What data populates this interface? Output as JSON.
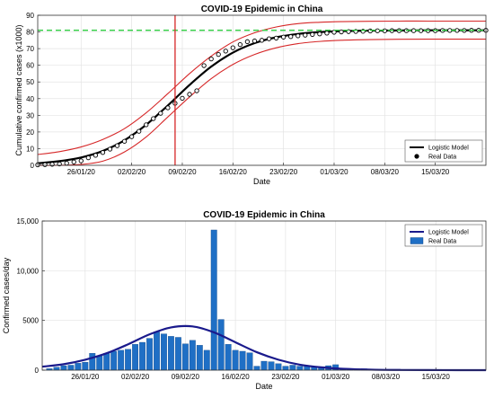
{
  "chart_data": [
    {
      "type": "line",
      "title": "COVID-19 Epidemic in China",
      "xlabel": "Date",
      "ylabel": "Cumulative confirmed cases (x1000)",
      "x_date_start": "2020-01-20",
      "x_date_end": "2020-03-22",
      "xticks": [
        "26/01/20",
        "02/02/20",
        "09/02/20",
        "16/02/20",
        "23/02/20",
        "01/03/20",
        "08/03/20",
        "15/03/20"
      ],
      "ylim": [
        0,
        90
      ],
      "yticks": [
        "0",
        "10",
        "20",
        "30",
        "40",
        "50",
        "60",
        "70",
        "80",
        "90"
      ],
      "grid": true,
      "legend": "bottom-right",
      "legend_entries": [
        "Logistic Model",
        "Real Data"
      ],
      "series": [
        {
          "name": "Logistic Model",
          "style": "line",
          "color": "#000000",
          "x": [
            "2020-01-20",
            "2020-01-23",
            "2020-01-26",
            "2020-01-29",
            "2020-02-01",
            "2020-02-04",
            "2020-02-07",
            "2020-02-10",
            "2020-02-13",
            "2020-02-16",
            "2020-02-19",
            "2020-02-22",
            "2020-02-25",
            "2020-02-28",
            "2020-03-02",
            "2020-03-06",
            "2020-03-10",
            "2020-03-14",
            "2020-03-18",
            "2020-03-22"
          ],
          "y": [
            1.2,
            2.5,
            4.7,
            8.6,
            15.0,
            24.3,
            35.9,
            48.2,
            59.2,
            67.6,
            73.3,
            76.8,
            78.8,
            79.9,
            80.5,
            80.8,
            80.9,
            81.0,
            81.0,
            81.0
          ]
        },
        {
          "name": "upper bound",
          "style": "line",
          "color": "#d62728",
          "x": [
            "2020-01-20",
            "2020-01-23",
            "2020-01-26",
            "2020-01-29",
            "2020-02-01",
            "2020-02-04",
            "2020-02-07",
            "2020-02-10",
            "2020-02-13",
            "2020-02-16",
            "2020-02-19",
            "2020-02-22",
            "2020-02-25",
            "2020-02-28",
            "2020-03-02",
            "2020-03-06",
            "2020-03-10",
            "2020-03-14",
            "2020-03-18",
            "2020-03-22"
          ],
          "y": [
            6.5,
            8.2,
            11.0,
            15.5,
            22.0,
            31.5,
            43.0,
            55.0,
            65.5,
            74.0,
            79.5,
            83.0,
            85.0,
            85.8,
            86.2,
            86.4,
            86.5,
            86.5,
            86.5,
            86.5
          ]
        },
        {
          "name": "lower bound",
          "style": "line",
          "color": "#d62728",
          "x": [
            "2020-01-20",
            "2020-01-23",
            "2020-01-26",
            "2020-01-29",
            "2020-02-01",
            "2020-02-04",
            "2020-02-07",
            "2020-02-10",
            "2020-02-13",
            "2020-02-16",
            "2020-02-19",
            "2020-02-22",
            "2020-02-25",
            "2020-02-28",
            "2020-03-02",
            "2020-03-06",
            "2020-03-10",
            "2020-03-14",
            "2020-03-18",
            "2020-03-22"
          ],
          "y": [
            0.0,
            0.0,
            0.5,
            2.5,
            8.0,
            17.0,
            29.0,
            41.0,
            52.0,
            60.5,
            66.5,
            70.5,
            73.0,
            74.3,
            75.0,
            75.4,
            75.6,
            75.7,
            75.7,
            75.7
          ]
        },
        {
          "name": "Real Data",
          "style": "markers",
          "color": "#000000",
          "x": [
            "2020-01-20",
            "2020-01-21",
            "2020-01-22",
            "2020-01-23",
            "2020-01-24",
            "2020-01-25",
            "2020-01-26",
            "2020-01-27",
            "2020-01-28",
            "2020-01-29",
            "2020-01-30",
            "2020-01-31",
            "2020-02-01",
            "2020-02-02",
            "2020-02-03",
            "2020-02-04",
            "2020-02-05",
            "2020-02-06",
            "2020-02-07",
            "2020-02-08",
            "2020-02-09",
            "2020-02-10",
            "2020-02-11",
            "2020-02-12",
            "2020-02-13",
            "2020-02-14",
            "2020-02-15",
            "2020-02-16",
            "2020-02-17",
            "2020-02-18",
            "2020-02-19",
            "2020-02-20",
            "2020-02-21",
            "2020-02-22",
            "2020-02-23",
            "2020-02-24",
            "2020-02-25",
            "2020-02-26",
            "2020-02-27",
            "2020-02-28",
            "2020-02-29",
            "2020-03-01",
            "2020-03-02",
            "2020-03-03",
            "2020-03-04",
            "2020-03-05",
            "2020-03-06",
            "2020-03-07",
            "2020-03-08",
            "2020-03-09",
            "2020-03-10",
            "2020-03-11",
            "2020-03-12",
            "2020-03-13",
            "2020-03-14",
            "2020-03-15",
            "2020-03-16",
            "2020-03-17",
            "2020-03-18",
            "2020-03-19",
            "2020-03-20",
            "2020-03-21",
            "2020-03-22"
          ],
          "y": [
            0.3,
            0.4,
            0.6,
            0.8,
            1.3,
            2.0,
            2.7,
            4.5,
            6.0,
            7.7,
            9.7,
            11.8,
            14.4,
            17.2,
            20.4,
            24.3,
            28.0,
            31.2,
            34.5,
            37.2,
            40.2,
            42.6,
            44.7,
            59.8,
            63.8,
            66.5,
            68.5,
            70.5,
            72.4,
            74.2,
            74.6,
            75.0,
            75.9,
            76.3,
            76.9,
            77.2,
            77.7,
            78.1,
            78.5,
            78.8,
            79.3,
            79.8,
            80.0,
            80.2,
            80.3,
            80.4,
            80.6,
            80.7,
            80.7,
            80.8,
            80.8,
            80.8,
            80.8,
            80.8,
            80.8,
            80.8,
            80.9,
            80.9,
            80.9,
            80.9,
            81.0,
            81.0,
            81.0
          ]
        },
        {
          "name": "plateau reference",
          "style": "dashed",
          "color": "#2ecc40",
          "x": [
            "2020-01-20",
            "2020-03-22"
          ],
          "y": [
            81,
            81
          ]
        },
        {
          "name": "inflection date",
          "style": "vertical",
          "color": "#d62728",
          "x": [
            "2020-02-08",
            "2020-02-08"
          ],
          "y": [
            0,
            90
          ]
        }
      ]
    },
    {
      "type": "bar",
      "title": "COVID-19 Epidemic in China",
      "xlabel": "Date",
      "ylabel": "Confirmed cases/day",
      "x_date_start": "2020-01-20",
      "x_date_end": "2020-03-22",
      "xticks": [
        "26/01/20",
        "02/02/20",
        "09/02/20",
        "16/02/20",
        "23/02/20",
        "01/03/20",
        "08/03/20",
        "15/03/20"
      ],
      "ylim": [
        0,
        15000
      ],
      "yticks": [
        "0",
        "5000",
        "10,000",
        "15,000"
      ],
      "grid": true,
      "legend": "top-right",
      "legend_entries": [
        "Logistic Model",
        "Real Data"
      ],
      "series": [
        {
          "name": "Real Data",
          "style": "bars",
          "color": "#1f6fc5",
          "x": [
            "2020-01-21",
            "2020-01-22",
            "2020-01-23",
            "2020-01-24",
            "2020-01-25",
            "2020-01-26",
            "2020-01-27",
            "2020-01-28",
            "2020-01-29",
            "2020-01-30",
            "2020-01-31",
            "2020-02-01",
            "2020-02-02",
            "2020-02-03",
            "2020-02-04",
            "2020-02-05",
            "2020-02-06",
            "2020-02-07",
            "2020-02-08",
            "2020-02-09",
            "2020-02-10",
            "2020-02-11",
            "2020-02-12",
            "2020-02-13",
            "2020-02-14",
            "2020-02-15",
            "2020-02-16",
            "2020-02-17",
            "2020-02-18",
            "2020-02-19",
            "2020-02-20",
            "2020-02-21",
            "2020-02-22",
            "2020-02-23",
            "2020-02-24",
            "2020-02-25",
            "2020-02-26",
            "2020-02-27",
            "2020-02-28",
            "2020-02-29",
            "2020-03-01",
            "2020-03-02",
            "2020-03-03",
            "2020-03-04",
            "2020-03-05",
            "2020-03-06",
            "2020-03-07",
            "2020-03-08",
            "2020-03-09",
            "2020-03-10"
          ],
          "y": [
            150,
            300,
            450,
            500,
            700,
            800,
            1700,
            1450,
            1700,
            1900,
            2000,
            2100,
            2600,
            2800,
            3200,
            3850,
            3650,
            3400,
            3300,
            2650,
            3000,
            2500,
            2000,
            14100,
            5100,
            2600,
            2000,
            1900,
            1750,
            400,
            900,
            850,
            650,
            400,
            500,
            400,
            450,
            300,
            300,
            450,
            550,
            200,
            120,
            120,
            140,
            100,
            40,
            40,
            20,
            20
          ]
        },
        {
          "name": "Logistic Model",
          "style": "line",
          "color": "#1a1a8c",
          "x": [
            "2020-01-20",
            "2020-01-23",
            "2020-01-26",
            "2020-01-29",
            "2020-02-01",
            "2020-02-04",
            "2020-02-07",
            "2020-02-10",
            "2020-02-13",
            "2020-02-16",
            "2020-02-19",
            "2020-02-22",
            "2020-02-25",
            "2020-02-28",
            "2020-03-02",
            "2020-03-06",
            "2020-03-10",
            "2020-03-14",
            "2020-03-18",
            "2020-03-22"
          ],
          "y": [
            350,
            600,
            1050,
            1700,
            2600,
            3600,
            4300,
            4400,
            3800,
            2800,
            1800,
            1050,
            550,
            280,
            140,
            50,
            20,
            10,
            0,
            0
          ]
        }
      ]
    }
  ]
}
